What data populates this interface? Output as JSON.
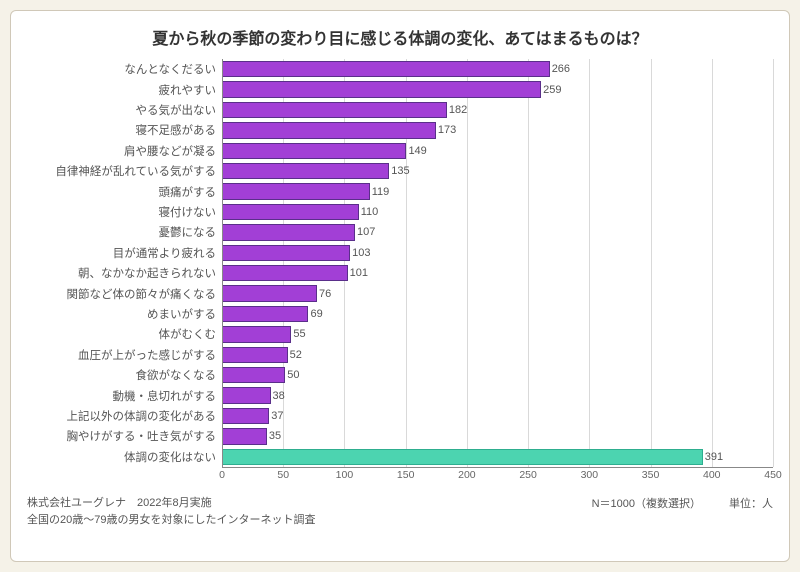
{
  "title": "夏から秋の季節の変わり目に感じる体調の変化、あてはまるものは？",
  "chart": {
    "type": "bar",
    "orientation": "horizontal",
    "xlim": [
      0,
      450
    ],
    "xtick_step": 50,
    "xticks": [
      0,
      50,
      100,
      150,
      200,
      250,
      300,
      350,
      400,
      450
    ],
    "bar_color": "#a23fd6",
    "bar_border": "#5a2f8a",
    "alt_bar_color": "#4cd4b0",
    "alt_bar_border": "#2eae8f",
    "grid_color": "#d9d9d9",
    "axis_color": "#888888",
    "label_fontsize": 11.5,
    "value_fontsize": 11,
    "background_color": "#ffffff",
    "items": [
      {
        "label": "なんとなくだるい",
        "value": 266,
        "alt": false
      },
      {
        "label": "疲れやすい",
        "value": 259,
        "alt": false
      },
      {
        "label": "やる気が出ない",
        "value": 182,
        "alt": false
      },
      {
        "label": "寝不足感がある",
        "value": 173,
        "alt": false
      },
      {
        "label": "肩や腰などが凝る",
        "value": 149,
        "alt": false
      },
      {
        "label": "自律神経が乱れている気がする",
        "value": 135,
        "alt": false
      },
      {
        "label": "頭痛がする",
        "value": 119,
        "alt": false
      },
      {
        "label": "寝付けない",
        "value": 110,
        "alt": false
      },
      {
        "label": "憂鬱になる",
        "value": 107,
        "alt": false
      },
      {
        "label": "目が通常より疲れる",
        "value": 103,
        "alt": false
      },
      {
        "label": "朝、なかなか起きられない",
        "value": 101,
        "alt": false
      },
      {
        "label": "関節など体の節々が痛くなる",
        "value": 76,
        "alt": false
      },
      {
        "label": "めまいがする",
        "value": 69,
        "alt": false
      },
      {
        "label": "体がむくむ",
        "value": 55,
        "alt": false
      },
      {
        "label": "血圧が上がった感じがする",
        "value": 52,
        "alt": false
      },
      {
        "label": "食欲がなくなる",
        "value": 50,
        "alt": false
      },
      {
        "label": "動機・息切れがする",
        "value": 38,
        "alt": false
      },
      {
        "label": "上記以外の体調の変化がある",
        "value": 37,
        "alt": false
      },
      {
        "label": "胸やけがする・吐き気がする",
        "value": 35,
        "alt": false
      },
      {
        "label": "体調の変化はない",
        "value": 391,
        "alt": true
      }
    ]
  },
  "footer": {
    "company_date": "株式会社ユーグレナ　2022年8月実施",
    "survey_desc": "全国の20歳～79歳の男女を対象にしたインターネット調査",
    "n_text": "N＝1000（複数選択）",
    "unit_text": "単位：人"
  }
}
